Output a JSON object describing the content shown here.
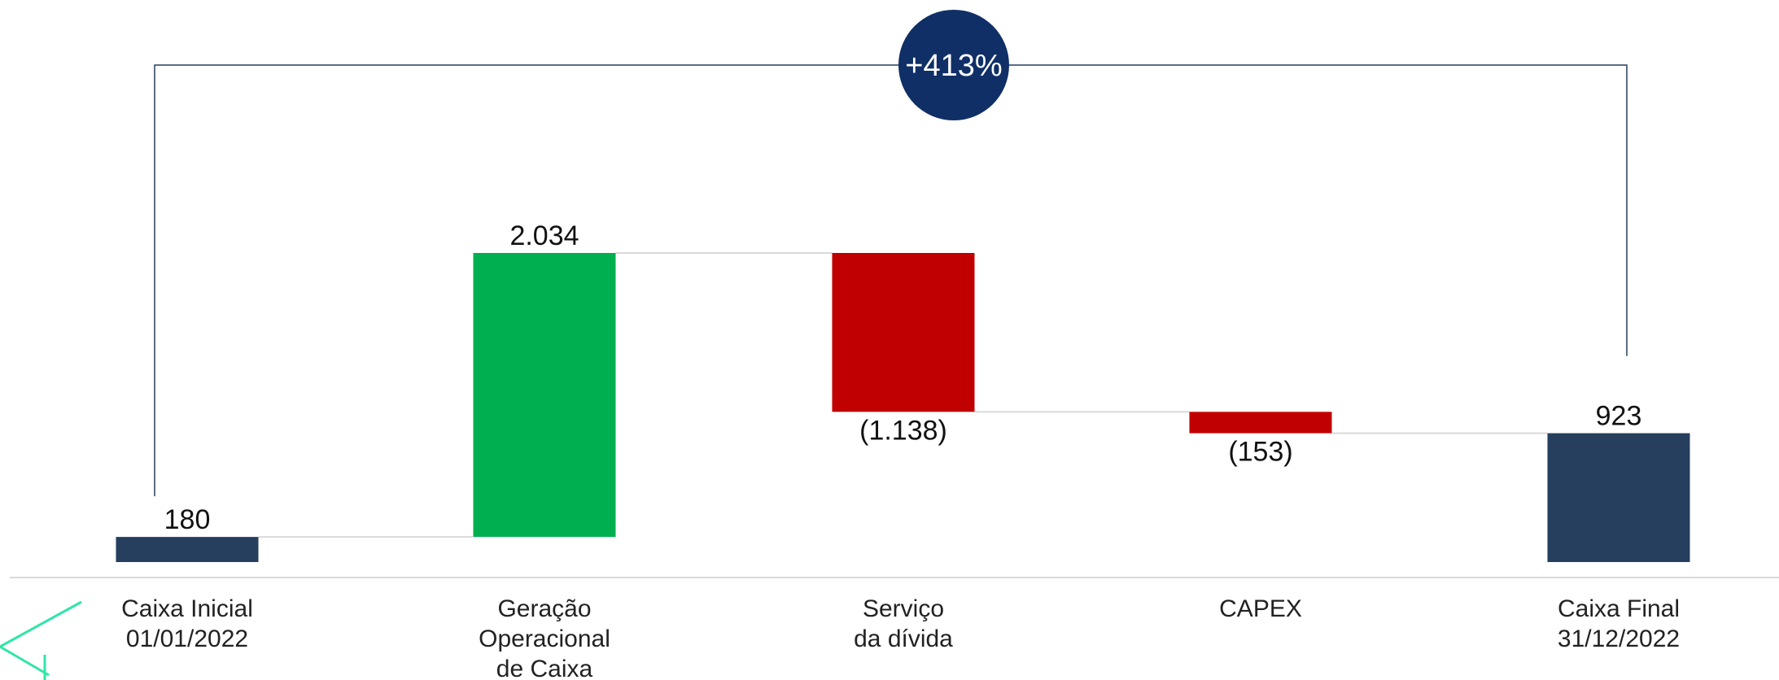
{
  "chart_data": {
    "type": "waterfall",
    "categories": [
      [
        "Caixa Inicial",
        "01/01/2022"
      ],
      [
        "Geração",
        "Operacional",
        "de Caixa"
      ],
      [
        "Serviço",
        "da dívida"
      ],
      [
        "CAPEX"
      ],
      [
        "Caixa Final",
        "31/12/2022"
      ]
    ],
    "values": [
      180,
      2034,
      -1138,
      -153,
      923
    ],
    "value_labels": [
      "180",
      "2.034",
      "(1.138)",
      "(153)",
      "923"
    ],
    "measure": [
      "absolute",
      "relative",
      "relative",
      "relative",
      "total"
    ],
    "colors": [
      "#263f5e",
      "#00b050",
      "#c00000",
      "#c00000",
      "#263f5e"
    ],
    "annotation": "+413%",
    "annotation_color": "#0f2f66"
  }
}
